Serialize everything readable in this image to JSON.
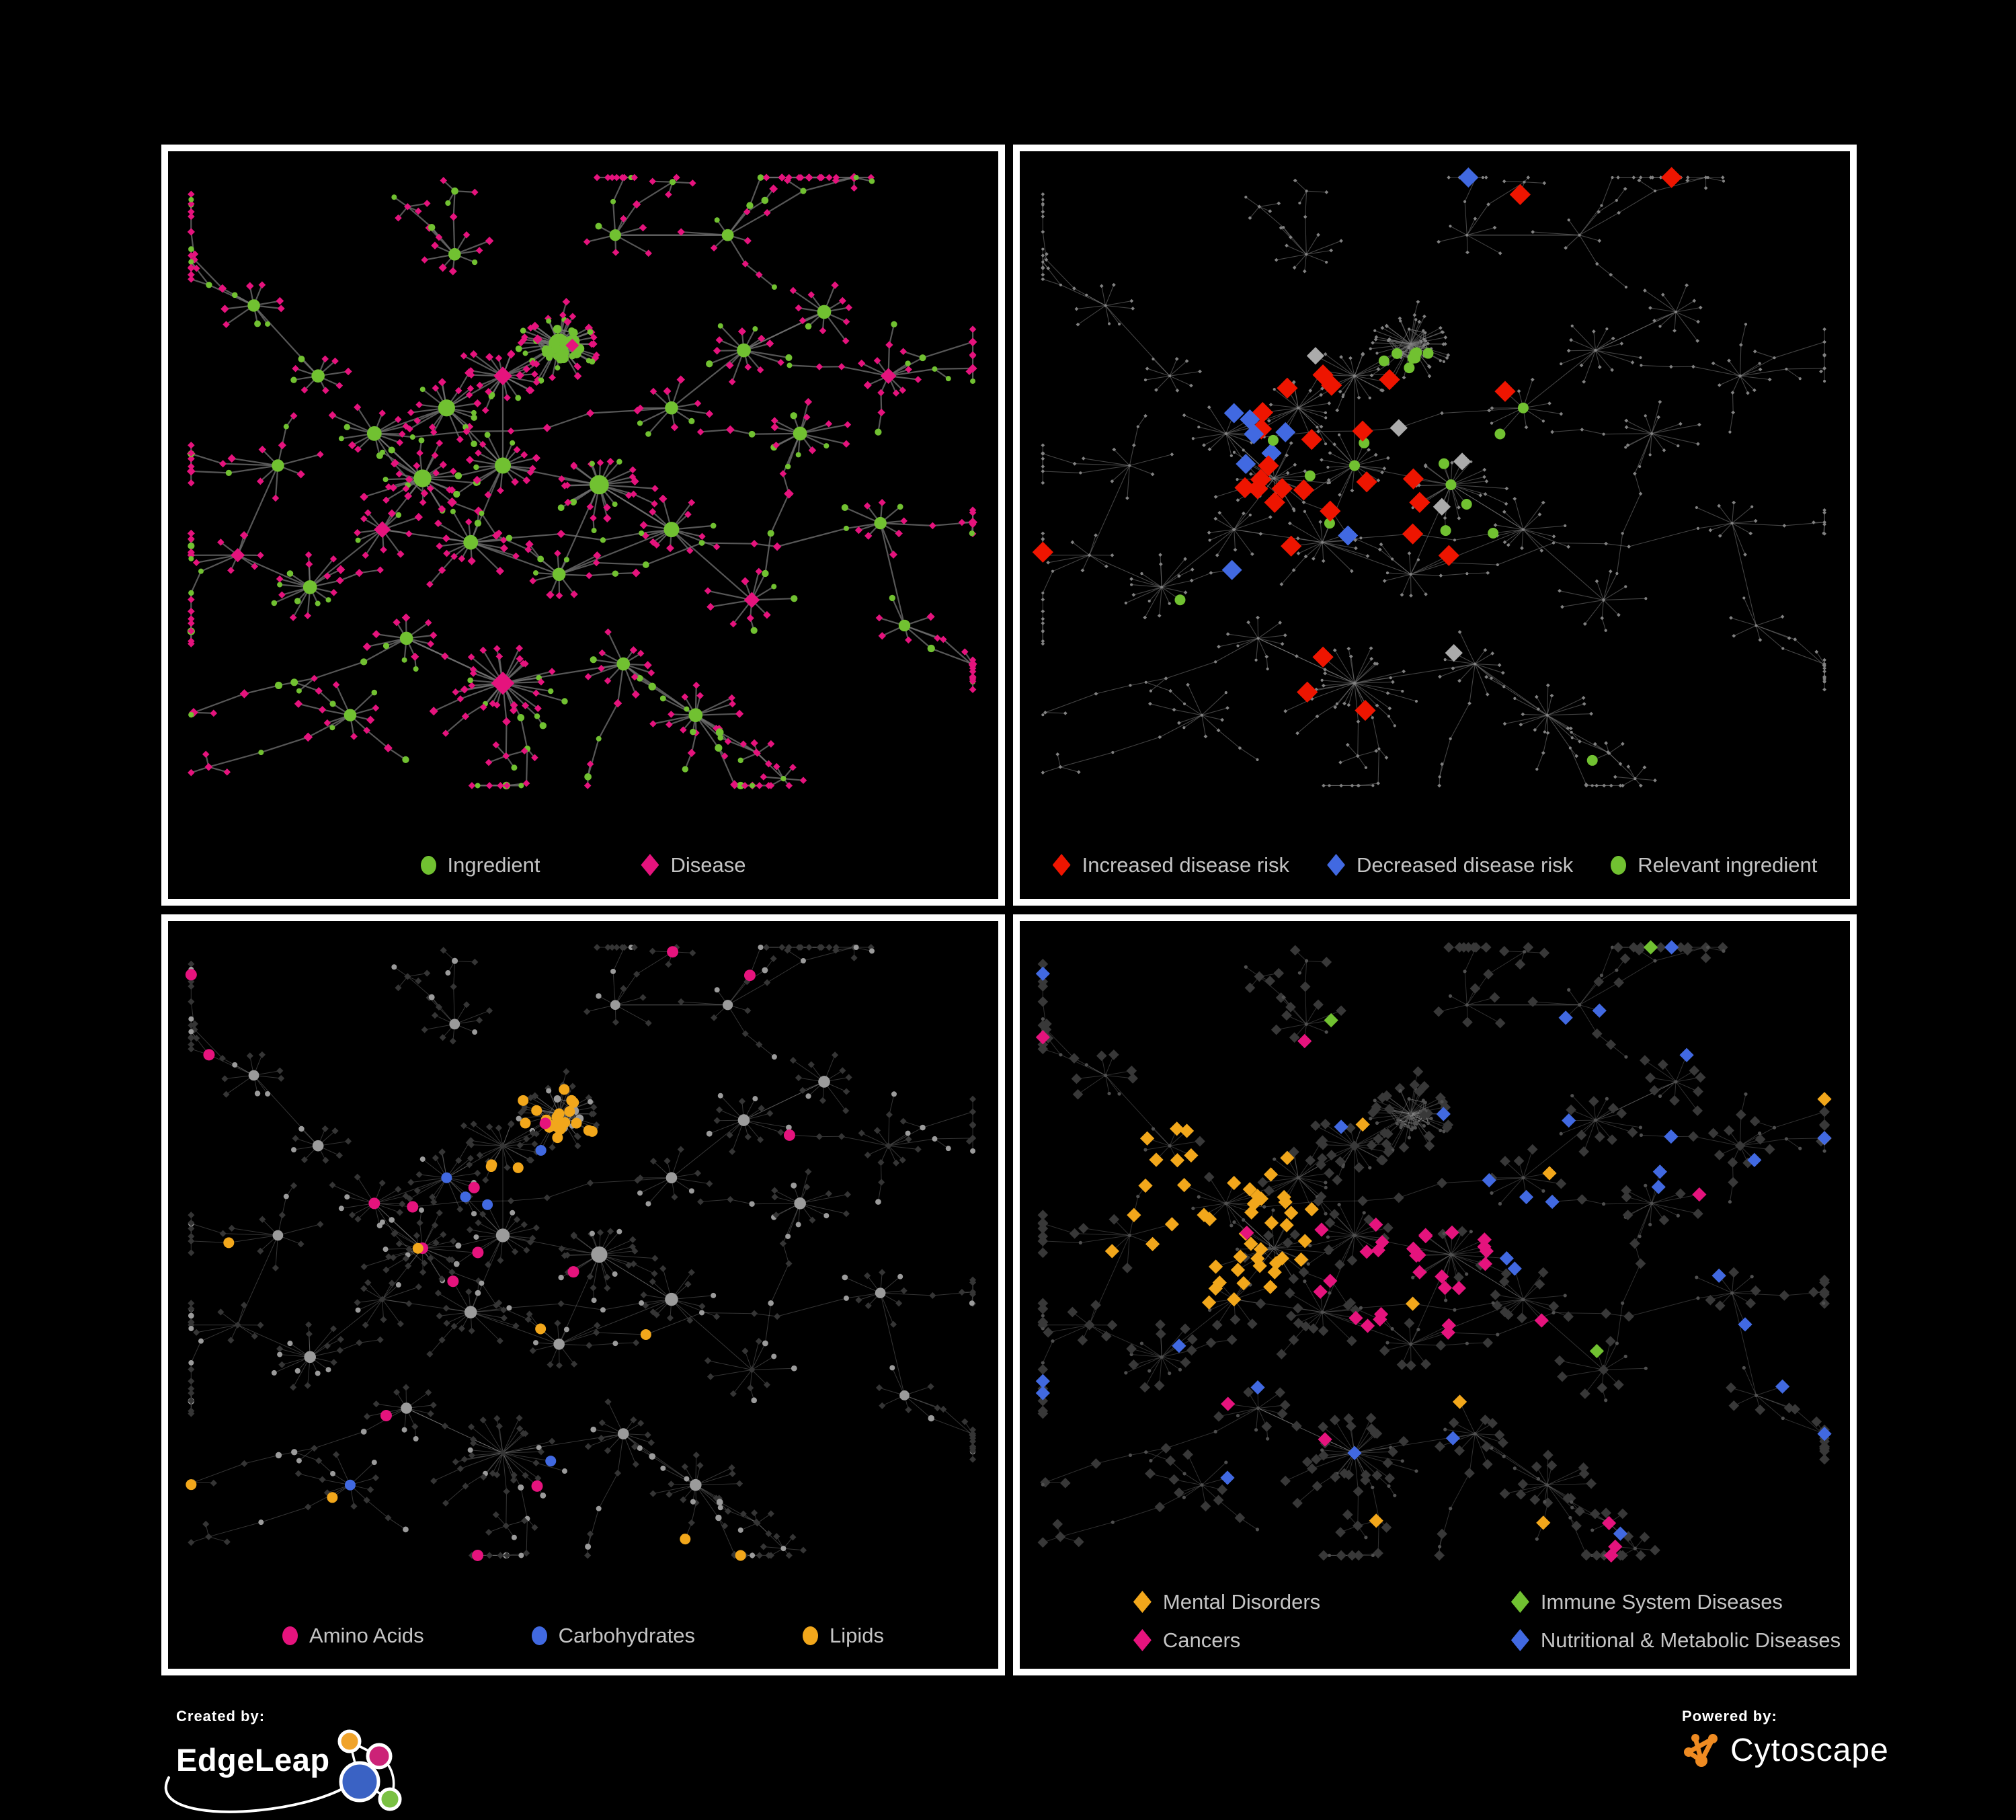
{
  "canvas": {
    "background": "#000000",
    "panel_border": "#ffffff",
    "legend_text_color": "#c4c4c4"
  },
  "palette": {
    "green": "#71c131",
    "pink": "#e5137d",
    "red": "#ee1500",
    "blue": "#4169e1",
    "orange": "#f2a71b",
    "gray_highlight": "#ababab",
    "edge_gray": "#6f6f6f"
  },
  "panels": [
    {
      "name": "ingredient-disease",
      "legend": [
        {
          "label": "Ingredient",
          "shape": "circle",
          "color": "#71c131"
        },
        {
          "label": "Disease",
          "shape": "diamond",
          "color": "#e5137d"
        }
      ],
      "legend_class": "gap-wide",
      "style": {
        "edge": {
          "color": "#6f6f6f",
          "opacity": 0.78,
          "width": 2.2
        },
        "ingredient": {
          "color": "#71c131",
          "scale": 1.0,
          "min": 4.0
        },
        "disease": {
          "color": "#e5137d",
          "scale": 1.05,
          "min": 4.6
        },
        "highlights": []
      }
    },
    {
      "name": "disease-risk",
      "legend": [
        {
          "label": "Increased disease risk",
          "shape": "diamond",
          "color": "#ee1500"
        },
        {
          "label": "Decreased disease risk",
          "shape": "diamond",
          "color": "#4169e1"
        },
        {
          "label": "Relevant ingredient",
          "shape": "circle",
          "color": "#71c131"
        }
      ],
      "legend_class": "gap-mid",
      "style": {
        "edge": {
          "color": "#7a7a7a",
          "opacity": 0.55,
          "width": 1.1
        },
        "ingredient": {
          "color": "#828282",
          "fixed": 2.1
        },
        "disease": {
          "color": "#828282",
          "fixed": 2.5
        },
        "highlights": [
          {
            "key": "increased-risk",
            "shape": "diamond",
            "color": "#ee1500",
            "size": 12.5,
            "kind": "d",
            "zone": [
              0.42,
              0.45,
              0.19
            ],
            "p_in": 0.17,
            "p_out": 0.013
          },
          {
            "key": "decreased-risk",
            "shape": "diamond",
            "color": "#4169e1",
            "size": 12.0,
            "kind": "d",
            "zone": [
              0.26,
              0.41,
              0.07
            ],
            "p_in": 0.4,
            "p_out": 0.005
          },
          {
            "key": "neutral-risk",
            "shape": "diamond",
            "color": "#ababab",
            "size": 10.5,
            "kind": "d",
            "zone": [
              0.45,
              0.45,
              0.25
            ],
            "p_in": 0.03,
            "p_out": 0.004
          },
          {
            "key": "relevant-ingredient",
            "shape": "circle",
            "color": "#71c131",
            "size": 8.0,
            "kind": "i",
            "zone": [
              0.45,
              0.42,
              0.2
            ],
            "p_in": 0.22,
            "p_out": 0.02
          }
        ]
      }
    },
    {
      "name": "ingredient-classes",
      "legend": [
        {
          "label": "Amino Acids",
          "shape": "circle",
          "color": "#e5137d"
        },
        {
          "label": "Carbohydrates",
          "shape": "circle",
          "color": "#4169e1"
        },
        {
          "label": "Lipids",
          "shape": "circle",
          "color": "#f2a71b"
        }
      ],
      "legend_class": "gap-big",
      "style": {
        "edge": {
          "color": "#b0b0b0",
          "opacity": 0.3,
          "width": 1.0
        },
        "ingredient": {
          "color": "#9b9b9b",
          "scale": 0.85,
          "min": 4.0
        },
        "disease": {
          "color": "#353535",
          "fixed": 4.4
        },
        "highlights": [
          {
            "key": "lipids",
            "shape": "circle",
            "color": "#f2a71b",
            "size": 8.0,
            "kind": "i",
            "zone": [
              0.47,
              0.28,
              0.12
            ],
            "p_in": 0.6,
            "p_out": 0.05
          },
          {
            "key": "carbohydrates",
            "shape": "circle",
            "color": "#4169e1",
            "size": 8.0,
            "kind": "i",
            "zone": [
              0.4,
              0.36,
              0.08
            ],
            "p_in": 0.28,
            "p_out": 0.012
          },
          {
            "key": "amino-acids",
            "shape": "circle",
            "color": "#e5137d",
            "size": 8.5,
            "kind": "i",
            "zone": [
              0.5,
              0.5,
              1.0
            ],
            "p_in": 0.055,
            "p_out": 0.055
          }
        ]
      }
    },
    {
      "name": "disease-classes",
      "legend": [
        {
          "label": "Mental Disorders",
          "shape": "diamond",
          "color": "#f2a71b"
        },
        {
          "label": "Immune System Diseases",
          "shape": "diamond",
          "color": "#71c131"
        },
        {
          "label": "Cancers",
          "shape": "diamond",
          "color": "#e5137d"
        },
        {
          "label": "Nutritional & Metabolic Diseases",
          "shape": "diamond",
          "color": "#4169e1"
        }
      ],
      "legend_class": "legend-grid",
      "style": {
        "edge": {
          "color": "#b9b9b9",
          "opacity": 0.26,
          "width": 1.0
        },
        "ingredient": {
          "color": "#4f4f4f",
          "fixed": 2.6
        },
        "disease": {
          "color": "#383838",
          "fixed": 6.8
        },
        "highlights": [
          {
            "key": "mental-disorders",
            "shape": "diamond",
            "color": "#f2a71b",
            "size": 8.5,
            "kind": "d",
            "zone": [
              0.2,
              0.44,
              0.15
            ],
            "p_in": 0.8,
            "p_out": 0.02
          },
          {
            "key": "cancers",
            "shape": "diamond",
            "color": "#e5137d",
            "size": 8.5,
            "kind": "d",
            "zone": [
              0.46,
              0.52,
              0.12
            ],
            "p_in": 0.5,
            "p_out": 0.03
          },
          {
            "key": "nutritional-metabolic",
            "shape": "diamond",
            "color": "#4169e1",
            "size": 8.5,
            "kind": "d",
            "zone": [
              0.78,
              0.42,
              0.34
            ],
            "p_in": 0.13,
            "p_out": 0.02
          },
          {
            "key": "immune-system",
            "shape": "diamond",
            "color": "#71c131",
            "size": 8.5,
            "kind": "d",
            "zone": [
              0.5,
              0.5,
              1.0
            ],
            "p_in": 0.013,
            "p_out": 0.013
          }
        ]
      }
    }
  ],
  "footer": {
    "created_by": "Created by:",
    "created_by_brand": "EdgeLeap",
    "powered_by": "Powered by:",
    "powered_by_brand": "Cytoscape",
    "edgeleap_logo_colors": {
      "orange": "#f0a32a",
      "magenta": "#cc2277",
      "blue": "#3a62c4",
      "green": "#7ac143"
    },
    "cytoscape_logo_color": "#ef8b22"
  }
}
